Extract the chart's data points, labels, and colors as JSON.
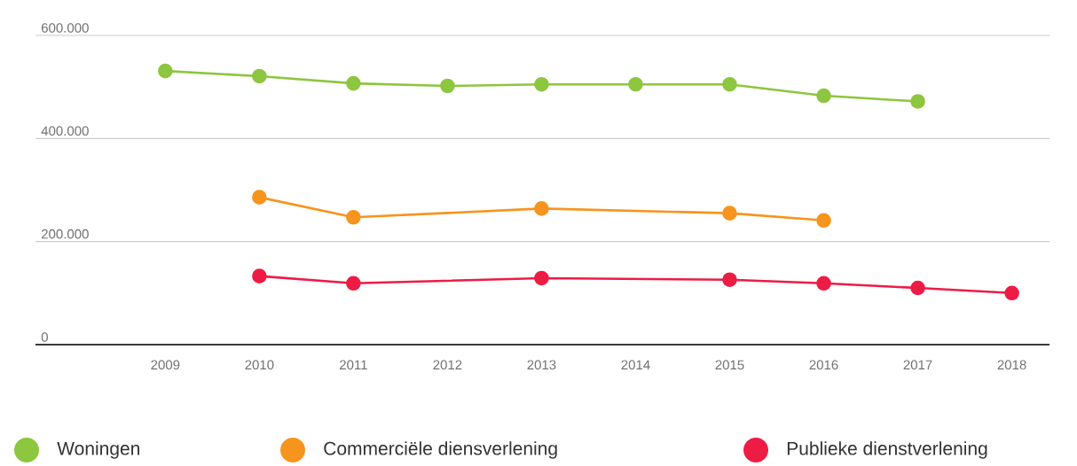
{
  "chart_data": {
    "type": "line",
    "xlim": [
      2007.62,
      2018.4
    ],
    "xticks": [
      2009,
      2010,
      2011,
      2012,
      2013,
      2014,
      2015,
      2016,
      2017,
      2018
    ],
    "ylim": [
      0,
      600000
    ],
    "yticks": [
      {
        "value": 0,
        "label": "0"
      },
      {
        "value": 200000,
        "label": "200.000"
      },
      {
        "value": 400000,
        "label": "400.000"
      },
      {
        "value": 600000,
        "label": "600.000"
      }
    ],
    "grid": "y",
    "legend": "bottom",
    "marker": "circle",
    "line_style": "solid",
    "series": [
      {
        "name": "Woningen",
        "color": "#8dc63f",
        "x": [
          2009,
          2010,
          2011,
          2012,
          2013,
          2014,
          2015,
          2016,
          2017
        ],
        "values": [
          531000,
          521000,
          507000,
          502000,
          505000,
          505000,
          505000,
          483000,
          472000
        ]
      },
      {
        "name": "Commerciële diensverlening",
        "color": "#f7941d",
        "x": [
          2010,
          2011,
          2013,
          2015,
          2016
        ],
        "values": [
          286000,
          247000,
          264000,
          255000,
          241000
        ]
      },
      {
        "name": "Publieke dienstverlening",
        "color": "#ed1c45",
        "x": [
          2010,
          2011,
          2013,
          2015,
          2016,
          2017,
          2018
        ],
        "values": [
          133000,
          119000,
          129000,
          126000,
          119000,
          110000,
          100000
        ]
      }
    ]
  }
}
